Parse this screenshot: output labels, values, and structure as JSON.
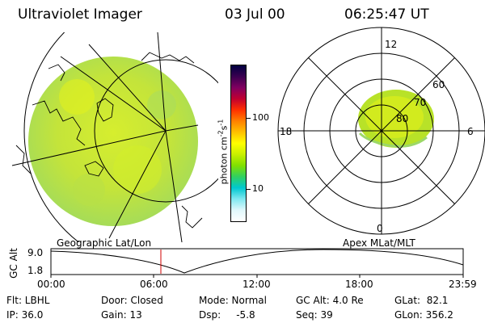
{
  "header": {
    "title": "Ultraviolet Imager",
    "date": "03 Jul 00",
    "time": "06:25:47 UT"
  },
  "colorbar": {
    "unit_main": "photon cm",
    "unit_exp1": "-2",
    "unit_s": "s",
    "unit_exp2": "-1",
    "tick_high": "100",
    "tick_low": "10",
    "colors": [
      "#000040",
      "#3a0050",
      "#800060",
      "#c00030",
      "#ff3000",
      "#ff8000",
      "#ffc000",
      "#ffff00",
      "#c8f000",
      "#80e000",
      "#30d060",
      "#00c8d0",
      "#80e8f0",
      "#e0f8fc",
      "#ffffff"
    ]
  },
  "polar": {
    "lat_labels": [
      "60",
      "70",
      "80"
    ],
    "mlt_labels": {
      "top": "12",
      "left": "18",
      "right": "6",
      "bottom": "0"
    }
  },
  "timeline": {
    "left_label": "Geographic Lat/Lon",
    "right_label": "Apex MLat/MLT",
    "ylabel": "GC Alt",
    "y_top": "9.0",
    "y_bottom": "1.8",
    "ticks": [
      "00:00",
      "06:00",
      "12:00",
      "18:00",
      "23:59"
    ]
  },
  "footer": {
    "row1": [
      "Flt: LBHL",
      "Door: Closed",
      "Mode: Normal",
      "GC Alt: 4.0 Re",
      "GLat:  82.1"
    ],
    "row2": [
      "IP: 36.0",
      "Gain: 13",
      "Dsp:     -5.8",
      "Seq: 39",
      "GLon: 356.2"
    ]
  }
}
